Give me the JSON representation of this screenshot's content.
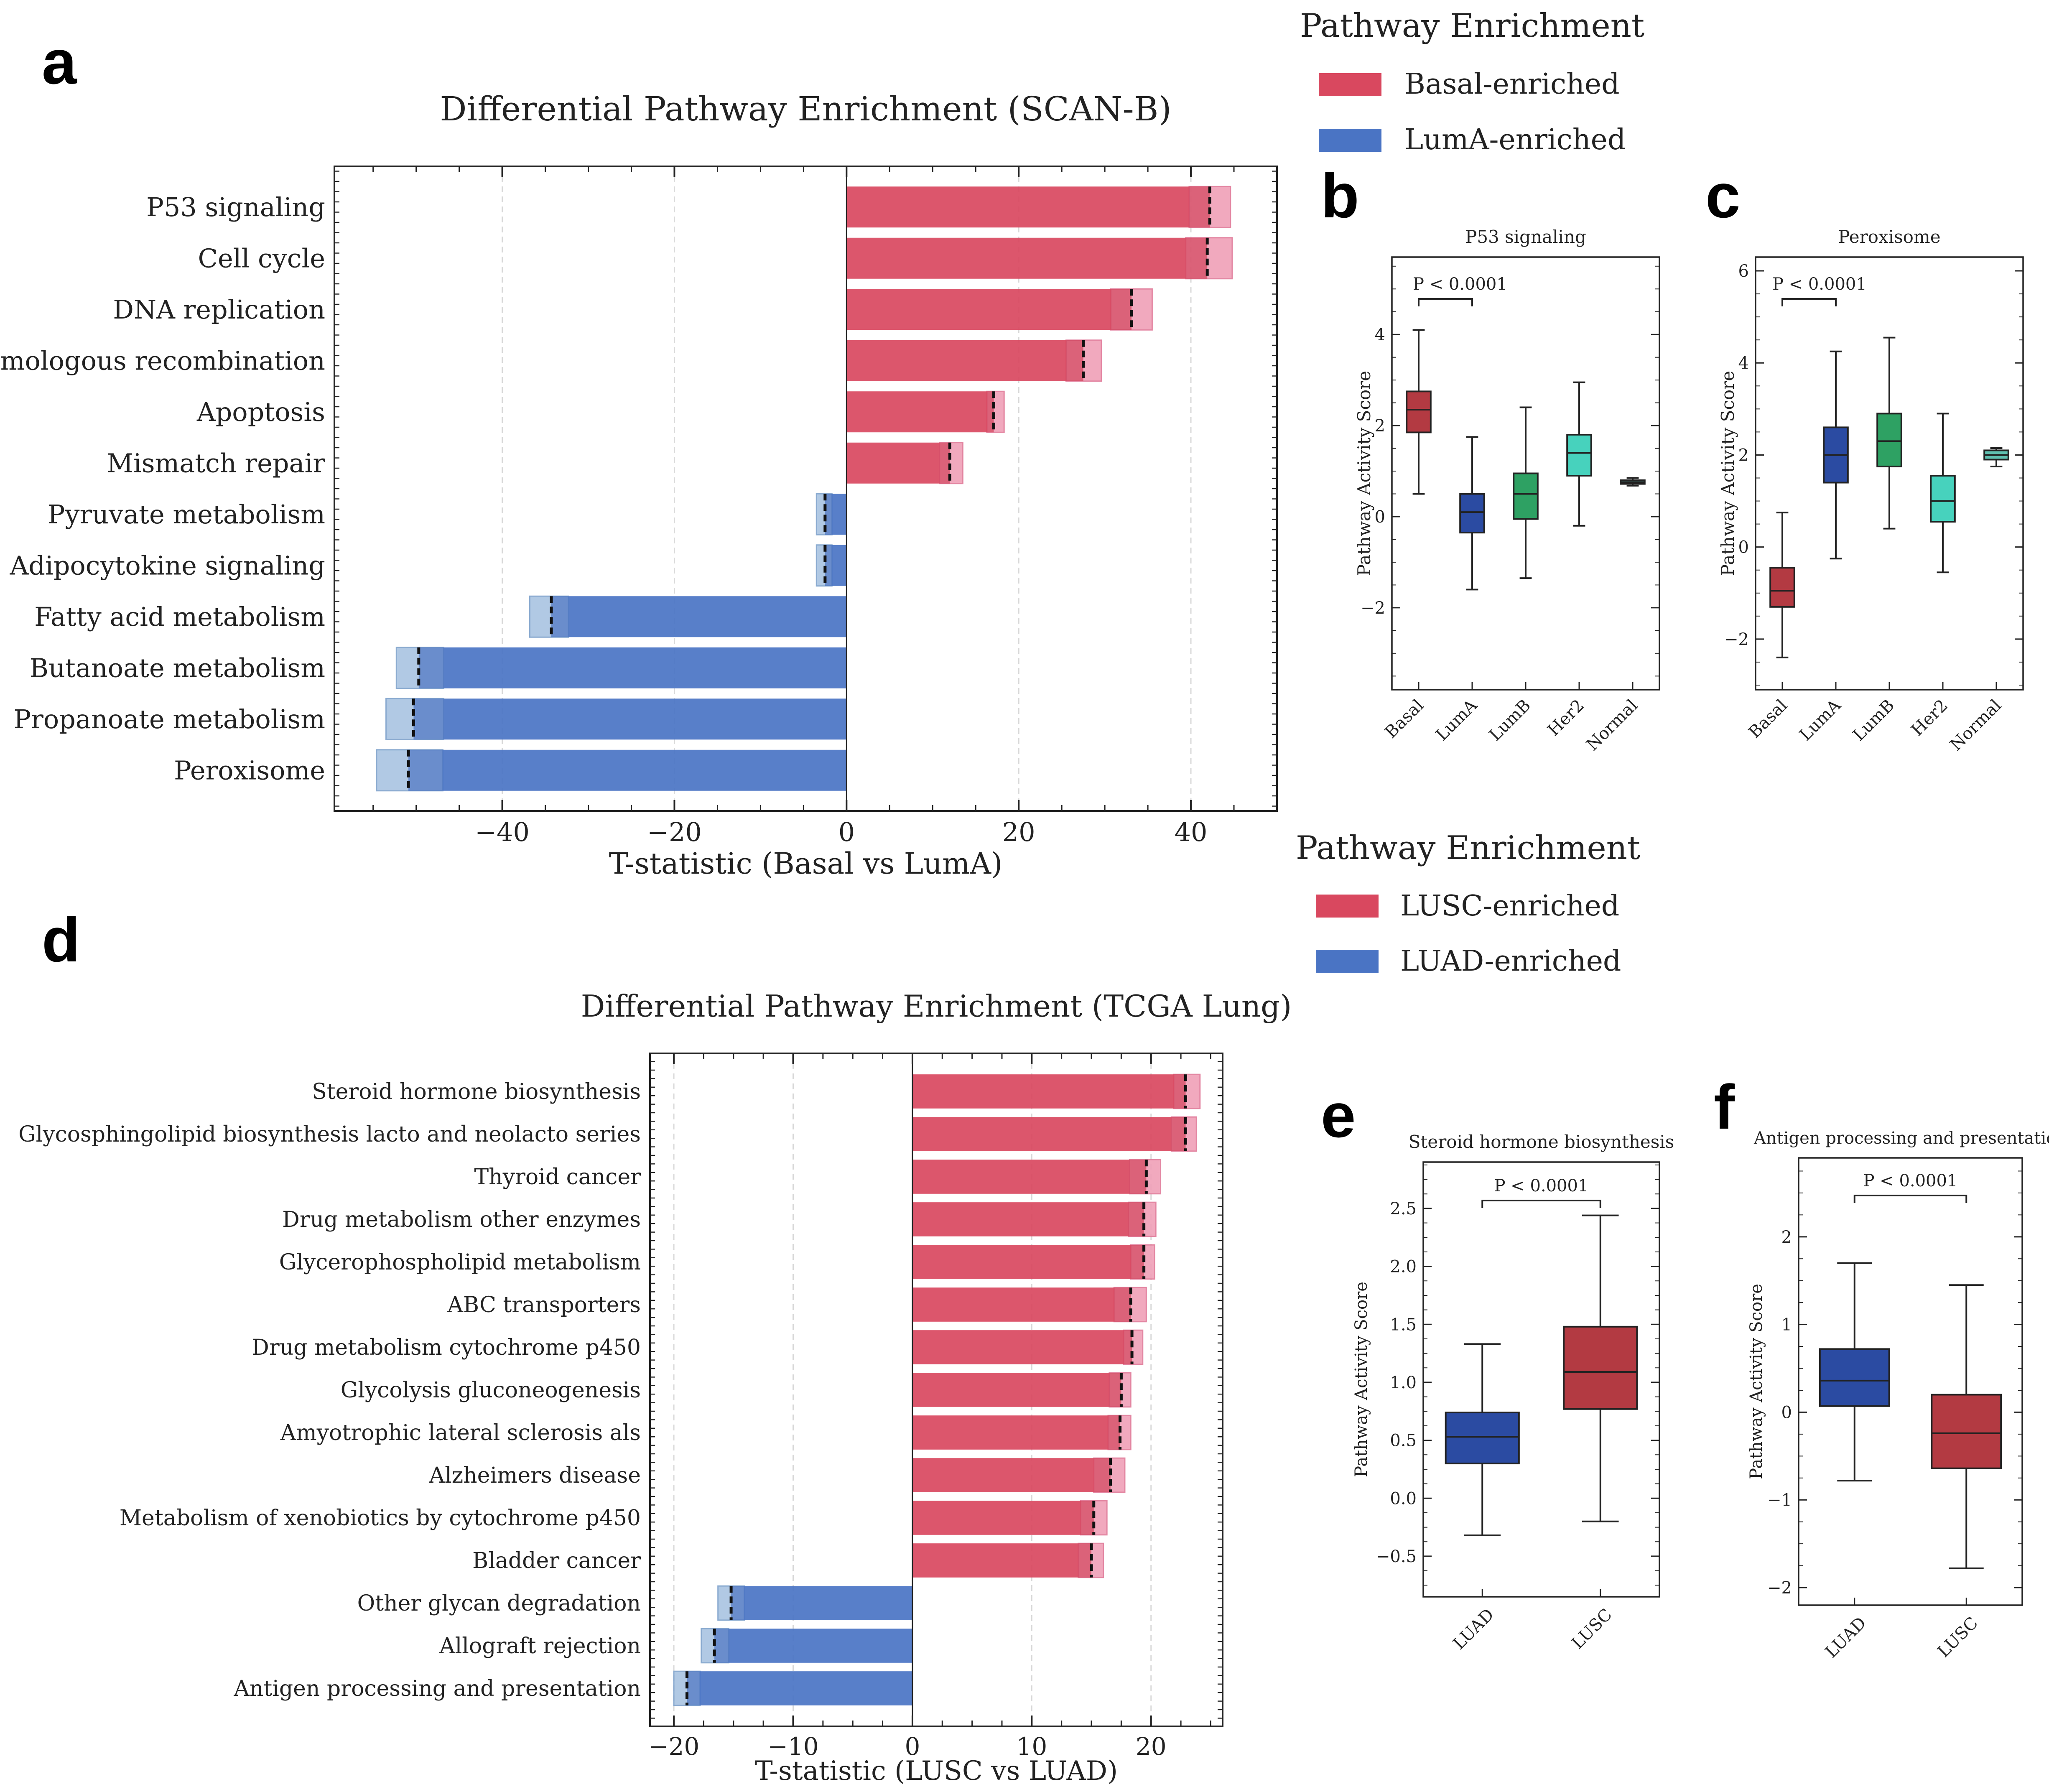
{
  "panel_letters": {
    "a": "a",
    "b": "b",
    "c": "c",
    "d": "d",
    "e": "e",
    "f": "f"
  },
  "colors": {
    "red": "#d9485f",
    "red_light": "#f0a0b8",
    "red_box": "#b33a42",
    "blue": "#4a74c4",
    "blue_light": "#a9c4e2",
    "blue_box": "#2b4ba2",
    "green_box": "#2ea163",
    "teal_box": "#47d2bd",
    "normal_box": "#5fbfb0"
  },
  "legend_a": {
    "title": "Pathway Enrichment",
    "items": [
      "Basal-enriched",
      "LumA-enriched"
    ]
  },
  "legend_d": {
    "title": "Pathway Enrichment",
    "items": [
      "LUSC-enriched",
      "LUAD-enriched"
    ]
  },
  "chart_data": [
    {
      "id": "a",
      "type": "bar",
      "orientation": "horizontal",
      "title": "Differential Pathway Enrichment (SCAN-B)",
      "xlabel": "T-statistic (Basal vs LumA)",
      "xlim": [
        -59.5,
        50
      ],
      "xticks": [
        -40,
        -20,
        0,
        20,
        40
      ],
      "xtick_labels": [
        "−40",
        "−20",
        "0",
        "20",
        "40"
      ],
      "categories": [
        "P53 signaling",
        "Cell cycle",
        "DNA replication",
        "Homologous recombination",
        "Apoptosis",
        "Mismatch repair",
        "Pyruvate metabolism",
        "Adipocytokine signaling",
        "Fatty acid metabolism",
        "Butanoate metabolism",
        "Propanoate metabolism",
        "Peroxisome"
      ],
      "values": [
        39.8,
        39.4,
        30.7,
        25.5,
        16.3,
        10.8,
        -1.7,
        -1.7,
        -32.3,
        -46.8,
        -46.8,
        -46.9
      ],
      "ci_low": [
        39.8,
        39.4,
        30.7,
        25.5,
        16.3,
        10.8,
        -3.5,
        -3.5,
        -36.8,
        -52.3,
        -53.5,
        -54.6
      ],
      "ci_high": [
        44.6,
        44.8,
        35.5,
        29.6,
        18.3,
        13.5,
        -1.7,
        -1.7,
        -32.3,
        -46.8,
        -46.8,
        -46.9
      ],
      "means": [
        42.2,
        41.9,
        33.1,
        27.5,
        17.1,
        12.0,
        -2.5,
        -2.5,
        -34.3,
        -49.7,
        -50.3,
        -50.9
      ],
      "enriched": [
        "Basal",
        "Basal",
        "Basal",
        "Basal",
        "Basal",
        "Basal",
        "LumA",
        "LumA",
        "LumA",
        "LumA",
        "LumA",
        "LumA"
      ]
    },
    {
      "id": "b",
      "type": "box",
      "title": "P53 signaling",
      "ylabel": "Pathway Activity Score",
      "ylim": [
        -3.8,
        5.7
      ],
      "yticks": [
        -2,
        0,
        2,
        4
      ],
      "ytick_labels": [
        "−2",
        "0",
        "2",
        "4"
      ],
      "categories": [
        "Basal",
        "LumA",
        "LumB",
        "Her2",
        "Normal"
      ],
      "boxes": [
        {
          "min": 0.5,
          "q1": 1.85,
          "median": 2.35,
          "q3": 2.75,
          "max": 4.1
        },
        {
          "min": -1.6,
          "q1": -0.35,
          "median": 0.1,
          "q3": 0.5,
          "max": 1.75
        },
        {
          "min": -1.35,
          "q1": -0.05,
          "median": 0.5,
          "q3": 0.95,
          "max": 2.4
        },
        {
          "min": -0.2,
          "q1": 0.9,
          "median": 1.4,
          "q3": 1.8,
          "max": 2.95
        },
        {
          "min": 0.68,
          "q1": 0.72,
          "median": 0.76,
          "q3": 0.8,
          "max": 0.85
        }
      ],
      "annotation": "P  <  0.0001"
    },
    {
      "id": "c",
      "type": "box",
      "title": "Peroxisome",
      "ylabel": "Pathway Activity Score",
      "ylim": [
        -3.1,
        6.3
      ],
      "yticks": [
        -2,
        0,
        2,
        4,
        6
      ],
      "ytick_labels": [
        "−2",
        "0",
        "2",
        "4",
        "6"
      ],
      "categories": [
        "Basal",
        "LumA",
        "LumB",
        "Her2",
        "Normal"
      ],
      "boxes": [
        {
          "min": -2.4,
          "q1": -1.3,
          "median": -0.95,
          "q3": -0.45,
          "max": 0.75
        },
        {
          "min": -0.25,
          "q1": 1.4,
          "median": 2.0,
          "q3": 2.6,
          "max": 4.25
        },
        {
          "min": 0.4,
          "q1": 1.75,
          "median": 2.3,
          "q3": 2.9,
          "max": 4.55
        },
        {
          "min": -0.55,
          "q1": 0.55,
          "median": 1.0,
          "q3": 1.55,
          "max": 2.9
        },
        {
          "min": 1.75,
          "q1": 1.9,
          "median": 2.0,
          "q3": 2.1,
          "max": 2.15
        }
      ],
      "annotation": "P  <  0.0001"
    },
    {
      "id": "d",
      "type": "bar",
      "orientation": "horizontal",
      "title": "Differential Pathway Enrichment (TCGA Lung)",
      "xlabel": "T-statistic (LUSC vs LUAD)",
      "xlim": [
        -22,
        26
      ],
      "xticks": [
        -20,
        -10,
        0,
        10,
        20
      ],
      "xtick_labels": [
        "−20",
        "−10",
        "0",
        "10",
        "20"
      ],
      "categories": [
        "Steroid hormone biosynthesis",
        "Glycosphingolipid biosynthesis lacto and neolacto series",
        "Thyroid cancer",
        "Drug metabolism other enzymes",
        "Glycerophospholipid metabolism",
        "ABC transporters",
        "Drug metabolism cytochrome p450",
        "Glycolysis gluconeogenesis",
        "Amyotrophic lateral sclerosis als",
        "Alzheimers disease",
        "Metabolism of xenobiotics by cytochrome p450",
        "Bladder cancer",
        "Other glycan degradation",
        "Allograft rejection",
        "Antigen processing and presentation"
      ],
      "values": [
        21.9,
        21.7,
        18.2,
        18.1,
        18.3,
        16.9,
        17.7,
        16.5,
        16.4,
        15.2,
        14.1,
        13.9,
        -14.1,
        -15.4,
        -17.8
      ],
      "ci_low": [
        21.9,
        21.7,
        18.2,
        18.1,
        18.3,
        16.9,
        17.7,
        16.5,
        16.4,
        15.2,
        14.1,
        13.9,
        -16.3,
        -17.7,
        -20.0
      ],
      "ci_high": [
        24.1,
        23.8,
        20.8,
        20.4,
        20.3,
        19.6,
        19.3,
        18.3,
        18.3,
        17.8,
        16.3,
        16.0,
        -14.1,
        -15.4,
        -17.8
      ],
      "means": [
        22.9,
        22.9,
        19.6,
        19.4,
        19.4,
        18.3,
        18.4,
        17.5,
        17.4,
        16.6,
        15.2,
        15.0,
        -15.2,
        -16.6,
        -18.9
      ],
      "enriched": [
        "LUSC",
        "LUSC",
        "LUSC",
        "LUSC",
        "LUSC",
        "LUSC",
        "LUSC",
        "LUSC",
        "LUSC",
        "LUSC",
        "LUSC",
        "LUSC",
        "LUAD",
        "LUAD",
        "LUAD"
      ]
    },
    {
      "id": "e",
      "type": "box",
      "title": "Steroid hormone biosynthesis",
      "ylabel": "Pathway Activity Score",
      "ylim": [
        -0.85,
        2.9
      ],
      "yticks": [
        -0.5,
        0.0,
        0.5,
        1.0,
        1.5,
        2.0,
        2.5
      ],
      "ytick_labels": [
        "−0.5",
        "0.0",
        "0.5",
        "1.0",
        "1.5",
        "2.0",
        "2.5"
      ],
      "categories": [
        "LUAD",
        "LUSC"
      ],
      "boxes": [
        {
          "min": -0.32,
          "q1": 0.3,
          "median": 0.53,
          "q3": 0.74,
          "max": 1.33
        },
        {
          "min": -0.2,
          "q1": 0.77,
          "median": 1.09,
          "q3": 1.48,
          "max": 2.44
        }
      ],
      "annotation": "P  <  0.0001"
    },
    {
      "id": "f",
      "type": "box",
      "title": "Antigen processing and presentation",
      "ylabel": "Pathway Activity Score",
      "ylim": [
        -2.2,
        2.9
      ],
      "yticks": [
        -2,
        -1,
        0,
        1,
        2
      ],
      "ytick_labels": [
        "−2",
        "−1",
        "0",
        "1",
        "2"
      ],
      "categories": [
        "LUAD",
        "LUSC"
      ],
      "boxes": [
        {
          "min": -0.78,
          "q1": 0.07,
          "median": 0.36,
          "q3": 0.72,
          "max": 1.7
        },
        {
          "min": -1.78,
          "q1": -0.64,
          "median": -0.24,
          "q3": 0.2,
          "max": 1.45
        }
      ],
      "annotation": "P  <  0.0001"
    }
  ]
}
